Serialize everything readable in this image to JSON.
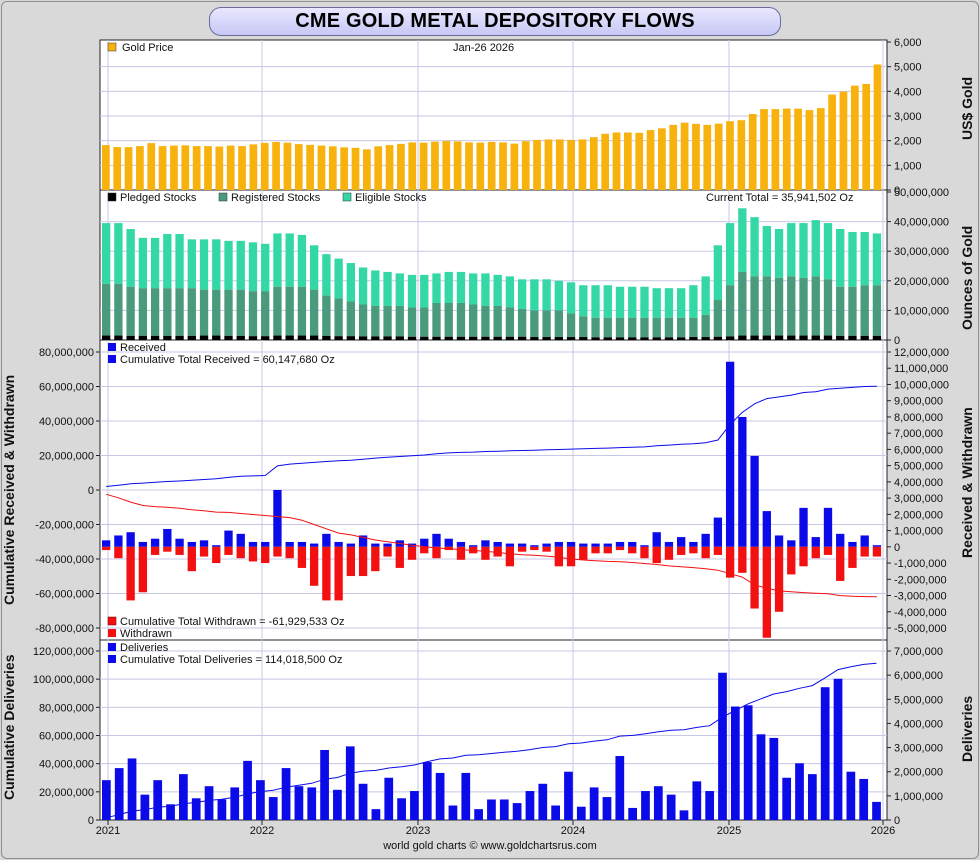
{
  "title": "CME GOLD METAL DEPOSITORY FLOWS",
  "footer": "world gold charts © www.goldchartsrus.com",
  "chart_data": [
    {
      "id": "price",
      "type": "bar",
      "legend": [
        "Gold Price"
      ],
      "date_label": "Jan-26  2026",
      "ylabel_right": "US$ Gold",
      "ylim": [
        0,
        6000
      ],
      "yticks": [
        0,
        1000,
        2000,
        3000,
        4000,
        5000,
        6000
      ],
      "ytick_labels": [
        "0",
        "1,000",
        "2,000",
        "3,000",
        "4,000",
        "5,000",
        "6,000"
      ],
      "color": "#f7b20e",
      "values": [
        1820,
        1740,
        1740,
        1780,
        1900,
        1780,
        1800,
        1810,
        1780,
        1780,
        1760,
        1800,
        1780,
        1850,
        1910,
        1950,
        1920,
        1860,
        1830,
        1800,
        1770,
        1730,
        1710,
        1650,
        1770,
        1820,
        1870,
        1930,
        1920,
        1960,
        1990,
        1970,
        1930,
        1920,
        1950,
        1930,
        1880,
        1980,
        2030,
        2050,
        2050,
        2030,
        2050,
        2140,
        2280,
        2330,
        2330,
        2320,
        2430,
        2500,
        2640,
        2730,
        2680,
        2640,
        2690,
        2790,
        2830,
        3080,
        3280,
        3280,
        3300,
        3300,
        3240,
        3320,
        3870,
        3990,
        4230,
        4300,
        5090
      ]
    },
    {
      "id": "stocks",
      "type": "stacked_bar",
      "legend": [
        "Pledged Stocks",
        "Registered Stocks",
        "Eligible Stocks"
      ],
      "current_total_label": "Current Total = 35,941,502 Oz",
      "ylabel_right": "Ounces of Gold",
      "ylim": [
        0,
        50000000
      ],
      "ytick_labels": [
        "0",
        "10,000,000",
        "20,000,000",
        "30,000,000",
        "40,000,000",
        "50,000,000"
      ],
      "colors": {
        "pledged": "#000000",
        "registered": "#4a9a7c",
        "eligible": "#33d8a6"
      },
      "totals": [
        39500,
        39500,
        37500,
        34500,
        34500,
        35800,
        35800,
        34000,
        34000,
        34000,
        33500,
        33500,
        33000,
        32500,
        36000,
        36000,
        35500,
        32000,
        29000,
        27500,
        26000,
        24500,
        23500,
        23000,
        22500,
        22000,
        22000,
        22500,
        23000,
        23000,
        22500,
        22500,
        22000,
        21500,
        20500,
        20500,
        20500,
        20000,
        19500,
        18500,
        18500,
        18500,
        18000,
        18000,
        18000,
        17500,
        17500,
        17500,
        18500,
        21500,
        32000,
        39500,
        44500,
        41500,
        38500,
        37500,
        39500,
        39500,
        40500,
        39500,
        37500,
        36500,
        36500,
        36000
      ],
      "registered": [
        19000,
        19000,
        18000,
        17500,
        17500,
        17500,
        17500,
        17500,
        17000,
        17000,
        17000,
        17000,
        16500,
        16500,
        18000,
        18000,
        18000,
        17000,
        15000,
        14000,
        13000,
        12000,
        11500,
        11500,
        11500,
        11000,
        11000,
        12500,
        12500,
        12500,
        12000,
        11500,
        11500,
        11000,
        10500,
        10000,
        10000,
        10000,
        9000,
        8000,
        7500,
        7500,
        7500,
        7500,
        7500,
        7500,
        7500,
        7500,
        7500,
        8500,
        13500,
        18500,
        23000,
        21500,
        21500,
        21000,
        21500,
        21000,
        21500,
        20500,
        18000,
        18000,
        18500,
        18500
      ],
      "pledged": [
        1500,
        1500,
        1400,
        1400,
        1400,
        1400,
        1400,
        1400,
        1500,
        1500,
        1400,
        1400,
        1300,
        1300,
        1500,
        1500,
        1500,
        1500,
        1400,
        1300,
        1300,
        1200,
        1200,
        1200,
        1200,
        1100,
        1100,
        1100,
        1100,
        1100,
        1100,
        1100,
        1100,
        1100,
        1100,
        1000,
        1000,
        1000,
        1000,
        1000,
        900,
        900,
        900,
        900,
        900,
        900,
        900,
        900,
        1000,
        1000,
        1100,
        1200,
        1500,
        1500,
        1500,
        1500,
        1500,
        1500,
        1500,
        1500,
        1400,
        1400,
        1400,
        1400
      ]
    },
    {
      "id": "flows",
      "type": "bar_line",
      "legend_top": [
        "Received",
        "Cumulative Total Received  = 60,147,680 Oz"
      ],
      "legend_bottom": [
        "Cumulative Total Withdrawn  = -61,929,533 Oz",
        "Withdrawn"
      ],
      "ylabel_left": "Cumulative Received & Withdrawn",
      "ylabel_right": "Received & Withdrawn",
      "left_ylim": [
        -80000000,
        80000000
      ],
      "left_tick_labels": [
        "80,000,000",
        "60,000,000",
        "40,000,000",
        "20,000,000",
        "0",
        "-20,000,000",
        "-40,000,000",
        "-60,000,000",
        "-80,000,000"
      ],
      "right_ylim": [
        -5000000,
        12000000
      ],
      "right_tick_labels": [
        "12,000,000",
        "11,000,000",
        "10,000,000",
        "9,000,000",
        "8,000,000",
        "7,000,000",
        "6,000,000",
        "5,000,000",
        "4,000,000",
        "3,000,000",
        "2,000,000",
        "1,000,000",
        "0",
        "-1,000,000",
        "-2,000,000",
        "-3,000,000",
        "-4,000,000",
        "-5,000,000"
      ],
      "received": [
        400,
        700,
        900,
        300,
        500,
        1100,
        500,
        300,
        400,
        100,
        1000,
        800,
        300,
        300,
        3500,
        300,
        300,
        200,
        800,
        300,
        200,
        700,
        200,
        200,
        400,
        200,
        500,
        800,
        500,
        300,
        100,
        400,
        300,
        200,
        200,
        100,
        200,
        300,
        300,
        200,
        200,
        200,
        300,
        300,
        100,
        900,
        300,
        600,
        300,
        800,
        1800,
        11400,
        8000,
        5600,
        2200,
        700,
        400,
        2400,
        600,
        2400,
        800,
        300,
        700,
        100
      ],
      "withdrawn": [
        -200,
        -700,
        -3300,
        -2800,
        -500,
        -300,
        -500,
        -1500,
        -600,
        -1000,
        -500,
        -700,
        -900,
        -1000,
        -600,
        -700,
        -1300,
        -2400,
        -3300,
        -3300,
        -1800,
        -1800,
        -1500,
        -600,
        -1300,
        -800,
        -400,
        -700,
        -200,
        -800,
        -400,
        -800,
        -600,
        -1200,
        -300,
        -200,
        -300,
        -1200,
        -1200,
        -800,
        -400,
        -400,
        -200,
        -400,
        -700,
        -1000,
        -800,
        -500,
        -400,
        -700,
        -500,
        -1900,
        -1600,
        -3800,
        -5600,
        -4000,
        -1700,
        -1200,
        -700,
        -500,
        -2100,
        -1300,
        -600,
        -600
      ],
      "cum_received": [
        2000,
        2800,
        3600,
        4000,
        4500,
        4900,
        5200,
        5600,
        6100,
        6500,
        7300,
        8000,
        8200,
        8400,
        14000,
        15000,
        15500,
        16000,
        16500,
        17000,
        17200,
        17800,
        18500,
        19000,
        19400,
        19800,
        20300,
        21000,
        21500,
        21800,
        22000,
        22300,
        22500,
        22700,
        22900,
        23100,
        23300,
        23500,
        23700,
        23900,
        24100,
        24300,
        24600,
        24800,
        25000,
        25600,
        26000,
        26500,
        26800,
        27400,
        29000,
        38000,
        45000,
        50000,
        53000,
        54000,
        55000,
        56500,
        57000,
        58500,
        59000,
        59500,
        60000,
        60100
      ],
      "cum_withdrawn": [
        -2500,
        -4500,
        -7000,
        -9000,
        -9600,
        -10000,
        -10600,
        -11500,
        -12000,
        -12800,
        -13000,
        -13600,
        -14200,
        -14800,
        -15400,
        -16000,
        -17500,
        -20000,
        -22500,
        -25000,
        -26000,
        -27500,
        -29000,
        -30000,
        -31000,
        -32000,
        -32800,
        -33600,
        -34000,
        -34600,
        -35000,
        -35600,
        -36200,
        -37000,
        -37500,
        -37800,
        -38300,
        -39000,
        -40000,
        -40600,
        -41000,
        -41400,
        -41600,
        -42000,
        -42600,
        -43200,
        -44000,
        -44500,
        -45000,
        -45600,
        -46500,
        -48500,
        -50500,
        -55000,
        -57000,
        -58500,
        -59000,
        -59500,
        -59800,
        -60200,
        -61200,
        -61600,
        -61800,
        -61900
      ],
      "received_color": "#0b0bea",
      "withdrawn_color": "#f21010"
    },
    {
      "id": "deliveries",
      "type": "bar_line",
      "legend": [
        "Deliveries",
        "Cumulative Total Deliveries  = 114,018,500 Oz"
      ],
      "ylabel_left": "Cumulative Deliveries",
      "ylabel_right": "Deliveries",
      "left_ylim": [
        0,
        120000000
      ],
      "left_tick_labels": [
        "0",
        "20,000,000",
        "40,000,000",
        "60,000,000",
        "80,000,000",
        "100,000,000",
        "120,000,000"
      ],
      "right_ylim": [
        0,
        7000000
      ],
      "right_tick_labels": [
        "0",
        "1,000,000",
        "2,000,000",
        "3,000,000",
        "4,000,000",
        "5,000,000",
        "6,000,000",
        "7,000,000"
      ],
      "deliveries": [
        1650,
        2150,
        2550,
        1050,
        1650,
        650,
        1900,
        900,
        1400,
        850,
        1350,
        2450,
        1650,
        950,
        2150,
        1400,
        1350,
        2900,
        1250,
        3050,
        1500,
        450,
        1750,
        900,
        1200,
        2400,
        1950,
        600,
        1950,
        450,
        850,
        850,
        700,
        1200,
        1500,
        600,
        2000,
        550,
        1350,
        950,
        2650,
        500,
        1200,
        1400,
        1050,
        400,
        1600,
        1200,
        6100,
        4700,
        4750,
        3550,
        3400,
        1750,
        2350,
        1900,
        5500,
        5850,
        2000,
        1700,
        750
      ],
      "cum_deliveries": [
        1650,
        3800,
        6350,
        7400,
        9050,
        9700,
        11600,
        12500,
        13900,
        14750,
        16100,
        18550,
        20200,
        21150,
        23300,
        24700,
        26050,
        28950,
        30200,
        33250,
        34750,
        35200,
        36950,
        37850,
        39050,
        41450,
        43400,
        44000,
        45950,
        46400,
        47250,
        48100,
        48800,
        50000,
        51500,
        52100,
        54100,
        54650,
        56000,
        56950,
        59600,
        60100,
        61300,
        62700,
        63750,
        64150,
        65750,
        66950,
        73050,
        77750,
        82500,
        86050,
        89450,
        91200,
        93550,
        95450,
        100950,
        106800,
        108800,
        110500,
        111250
      ],
      "bar_color": "#0b0bea"
    }
  ],
  "x_axis": {
    "labels": [
      "2021",
      "2022",
      "2023",
      "2024",
      "2025",
      "2026"
    ]
  }
}
